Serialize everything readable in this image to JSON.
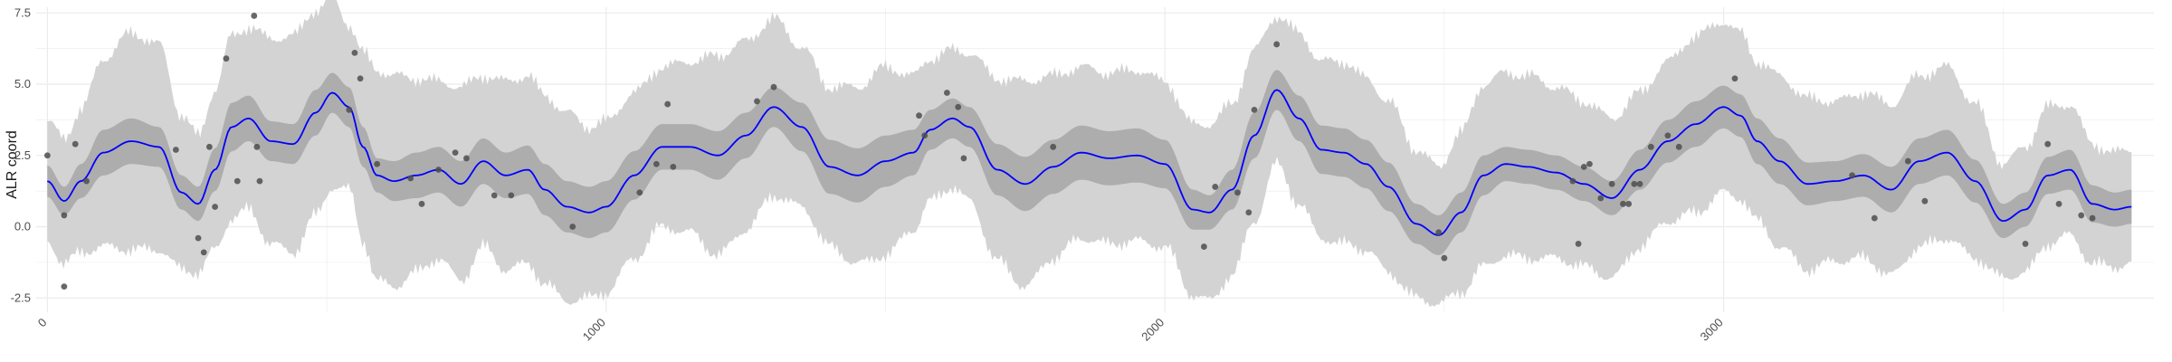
{
  "chart_data": {
    "type": "line",
    "title": "",
    "xlabel": "",
    "ylabel": "ALR coord",
    "xlim": [
      -20,
      3770
    ],
    "ylim": [
      -3.0,
      7.7
    ],
    "grid": true,
    "legend": "none",
    "x_ticks": [
      0,
      1000,
      2000,
      3000
    ],
    "x_tick_labels": [
      "0",
      "1000",
      "2000",
      "3000"
    ],
    "y_ticks": [
      -2.5,
      0.0,
      2.5,
      5.0,
      7.5
    ],
    "y_tick_labels": [
      "-2.5",
      "0.0",
      "2.5",
      "5.0",
      "7.5"
    ],
    "colors": {
      "mean_line": "#0000ff",
      "inner_band": "#adadad",
      "outer_band": "#d3d3d3",
      "points": "#4d4d4d",
      "grid": "#ebebeb"
    },
    "series": [
      {
        "kind": "mean",
        "x": [
          0,
          30,
          60,
          100,
          150,
          200,
          240,
          270,
          300,
          330,
          360,
          400,
          440,
          480,
          510,
          540,
          565,
          590,
          620,
          660,
          700,
          740,
          780,
          820,
          860,
          890,
          930,
          970,
          1000,
          1050,
          1100,
          1150,
          1200,
          1250,
          1300,
          1350,
          1400,
          1450,
          1500,
          1550,
          1580,
          1620,
          1650,
          1700,
          1750,
          1800,
          1850,
          1900,
          1950,
          2000,
          2050,
          2080,
          2120,
          2160,
          2200,
          2240,
          2280,
          2320,
          2360,
          2400,
          2450,
          2490,
          2530,
          2570,
          2610,
          2650,
          2700,
          2750,
          2800,
          2850,
          2900,
          2950,
          3000,
          3030,
          3060,
          3100,
          3150,
          3200,
          3250,
          3300,
          3350,
          3400,
          3450,
          3500,
          3540,
          3580,
          3620,
          3660,
          3700,
          3730
        ],
        "y": [
          1.6,
          0.9,
          1.6,
          2.6,
          3.0,
          2.8,
          1.2,
          0.8,
          2.0,
          3.5,
          3.8,
          3.0,
          2.9,
          4.0,
          4.7,
          4.2,
          2.8,
          1.8,
          1.6,
          1.8,
          2.0,
          1.5,
          2.3,
          1.8,
          2.0,
          1.3,
          0.7,
          0.5,
          0.7,
          1.8,
          2.8,
          2.8,
          2.5,
          3.2,
          4.2,
          3.5,
          2.1,
          1.8,
          2.3,
          2.6,
          3.4,
          3.8,
          3.5,
          2.0,
          1.5,
          2.1,
          2.6,
          2.4,
          2.5,
          2.2,
          0.6,
          0.5,
          1.3,
          3.2,
          4.8,
          3.8,
          2.7,
          2.6,
          2.2,
          1.4,
          0.1,
          -0.3,
          0.5,
          1.8,
          2.2,
          2.1,
          1.9,
          1.5,
          1.0,
          2.0,
          3.0,
          3.6,
          4.2,
          3.9,
          3.0,
          2.3,
          1.5,
          1.6,
          1.8,
          1.3,
          2.3,
          2.6,
          1.6,
          0.2,
          0.6,
          1.8,
          2.0,
          0.8,
          0.6,
          0.7
        ]
      },
      {
        "kind": "inner_band",
        "half_width": [
          0.55,
          0.5,
          0.6,
          0.8,
          0.8,
          0.7,
          0.6,
          0.6,
          0.75,
          0.85,
          0.8,
          0.7,
          0.7,
          0.8,
          0.7,
          0.7,
          0.7,
          0.6,
          0.7,
          0.8,
          0.8,
          0.8,
          0.8,
          0.8,
          0.85,
          0.9,
          0.9,
          0.9,
          0.9,
          0.85,
          0.8,
          0.8,
          0.85,
          0.8,
          0.7,
          0.85,
          0.95,
          0.95,
          0.9,
          0.8,
          0.7,
          0.7,
          0.7,
          0.9,
          0.95,
          0.95,
          0.95,
          0.95,
          0.95,
          0.85,
          0.7,
          0.6,
          0.7,
          0.8,
          0.7,
          0.8,
          0.85,
          0.85,
          0.85,
          0.85,
          0.7,
          0.7,
          0.7,
          0.7,
          0.6,
          0.6,
          0.6,
          0.6,
          0.6,
          0.7,
          0.75,
          0.8,
          0.75,
          0.75,
          0.8,
          0.8,
          0.75,
          0.7,
          0.75,
          0.8,
          0.8,
          0.8,
          0.75,
          0.6,
          0.6,
          0.65,
          0.7,
          0.65,
          0.6,
          0.6
        ]
      },
      {
        "kind": "outer_band",
        "half_width": [
          2.1,
          2.2,
          2.5,
          3.3,
          3.8,
          3.6,
          2.7,
          2.4,
          2.8,
          3.2,
          3.2,
          3.6,
          3.8,
          3.6,
          3.3,
          2.9,
          3.3,
          3.7,
          3.7,
          3.4,
          3.1,
          3.4,
          3.0,
          3.3,
          3.3,
          3.3,
          3.3,
          3.0,
          3.0,
          2.9,
          2.8,
          3.0,
          3.5,
          3.3,
          3.1,
          2.8,
          2.8,
          3.1,
          3.3,
          2.7,
          2.5,
          2.4,
          2.6,
          3.2,
          3.6,
          3.2,
          3.0,
          3.0,
          3.0,
          2.9,
          3.0,
          3.1,
          3.0,
          3.0,
          2.6,
          3.0,
          3.1,
          3.2,
          3.0,
          3.0,
          2.6,
          2.4,
          2.8,
          3.2,
          3.2,
          3.2,
          3.0,
          2.9,
          2.8,
          2.7,
          2.8,
          3.1,
          3.0,
          2.9,
          2.8,
          3.0,
          3.0,
          2.8,
          2.9,
          3.0,
          3.0,
          3.0,
          2.7,
          2.0,
          2.2,
          2.4,
          2.3,
          2.1,
          2.0,
          2.0
        ]
      }
    ],
    "points": {
      "x": [
        0,
        30,
        30,
        50,
        70,
        230,
        270,
        280,
        290,
        300,
        320,
        340,
        370,
        375,
        380,
        540,
        550,
        560,
        590,
        650,
        670,
        700,
        730,
        750,
        800,
        830,
        940,
        1060,
        1090,
        1110,
        1120,
        1270,
        1300,
        1560,
        1570,
        1610,
        1630,
        1640,
        1800,
        2070,
        2090,
        2130,
        2150,
        2160,
        2200,
        2490,
        2500,
        2730,
        2740,
        2750,
        2760,
        2780,
        2800,
        2820,
        2830,
        2840,
        2850,
        2870,
        2900,
        2920,
        3020,
        3230,
        3270,
        3330,
        3360,
        3540,
        3580,
        3600,
        3640,
        3660
      ],
      "y": [
        2.5,
        0.4,
        -2.1,
        2.9,
        1.6,
        2.7,
        -0.4,
        -0.9,
        2.8,
        0.7,
        5.9,
        1.6,
        7.4,
        2.8,
        1.6,
        4.1,
        6.1,
        5.2,
        2.2,
        1.7,
        0.8,
        2.0,
        2.6,
        2.4,
        1.1,
        1.1,
        0.0,
        1.2,
        2.2,
        4.3,
        2.1,
        4.4,
        4.9,
        3.9,
        3.2,
        4.7,
        4.2,
        2.4,
        2.8,
        -0.7,
        1.4,
        1.2,
        0.5,
        4.1,
        6.4,
        -0.2,
        -1.1,
        1.6,
        -0.6,
        2.1,
        2.2,
        1.0,
        1.5,
        0.8,
        0.8,
        1.5,
        1.5,
        2.8,
        3.2,
        2.8,
        5.2,
        1.8,
        0.3,
        2.3,
        0.9,
        -0.6,
        2.9,
        0.8,
        0.4,
        0.3
      ]
    }
  }
}
